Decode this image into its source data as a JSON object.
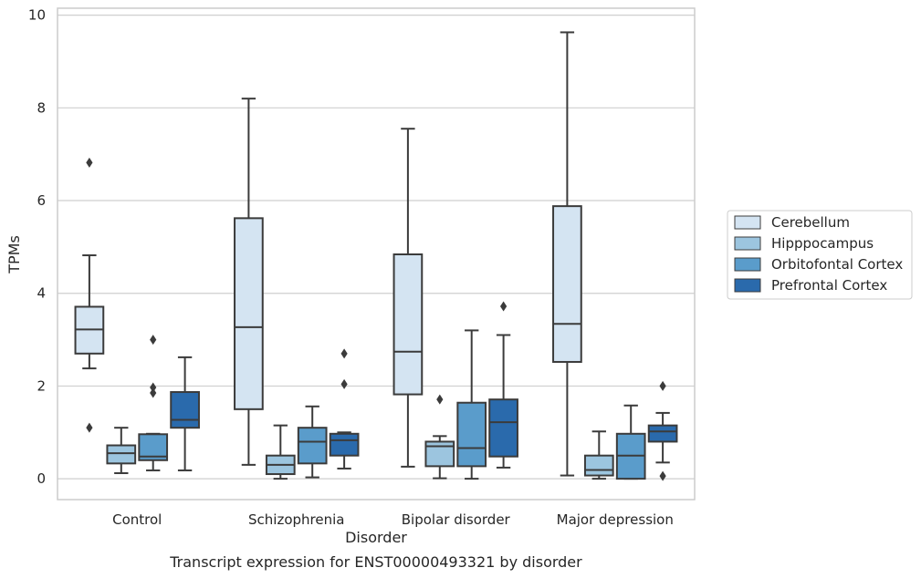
{
  "chart_data": {
    "type": "box",
    "title": "",
    "xlabel": "Disorder",
    "ylabel": "TPMs",
    "caption": "Transcript expression for ENST00000493321 by disorder",
    "ylim": [
      -0.45,
      10.15
    ],
    "yticks": [
      0,
      2,
      4,
      6,
      8,
      10
    ],
    "grid": "horizontal",
    "legend_position": "right",
    "categories": [
      "Control",
      "Schizophrenia",
      "Bipolar disorder",
      "Major depression"
    ],
    "series": [
      {
        "name": "Cerebellum",
        "color": "#d4e4f2",
        "boxes": [
          {
            "whislo": 2.38,
            "q1": 2.7,
            "med": 3.22,
            "q3": 3.71,
            "whishi": 4.82,
            "fliers": [
              6.82,
              1.1
            ]
          },
          {
            "whislo": 0.3,
            "q1": 1.5,
            "med": 3.27,
            "q3": 5.62,
            "whishi": 8.2,
            "fliers": []
          },
          {
            "whislo": 0.26,
            "q1": 1.82,
            "med": 2.74,
            "q3": 4.84,
            "whishi": 7.55,
            "fliers": []
          },
          {
            "whislo": 0.07,
            "q1": 2.52,
            "med": 3.34,
            "q3": 5.88,
            "whishi": 9.63,
            "fliers": []
          }
        ]
      },
      {
        "name": "Hipppocampus",
        "color": "#9cc5df",
        "boxes": [
          {
            "whislo": 0.12,
            "q1": 0.33,
            "med": 0.55,
            "q3": 0.72,
            "whishi": 1.1,
            "fliers": []
          },
          {
            "whislo": 0.0,
            "q1": 0.1,
            "med": 0.3,
            "q3": 0.5,
            "whishi": 1.15,
            "fliers": []
          },
          {
            "whislo": 0.01,
            "q1": 0.27,
            "med": 0.7,
            "q3": 0.8,
            "whishi": 0.92,
            "fliers": [
              1.71
            ]
          },
          {
            "whislo": 0.0,
            "q1": 0.07,
            "med": 0.19,
            "q3": 0.5,
            "whishi": 1.02,
            "fliers": []
          }
        ]
      },
      {
        "name": "Orbitofontal Cortex",
        "color": "#5a9ccb",
        "boxes": [
          {
            "whislo": 0.18,
            "q1": 0.4,
            "med": 0.48,
            "q3": 0.96,
            "whishi": 0.97,
            "fliers": [
              3.0,
              1.97,
              1.85
            ]
          },
          {
            "whislo": 0.03,
            "q1": 0.33,
            "med": 0.8,
            "q3": 1.1,
            "whishi": 1.56,
            "fliers": []
          },
          {
            "whislo": 0.0,
            "q1": 0.27,
            "med": 0.66,
            "q3": 1.64,
            "whishi": 3.2,
            "fliers": []
          },
          {
            "whislo": 0.0,
            "q1": 0.0,
            "med": 0.5,
            "q3": 0.97,
            "whishi": 1.58,
            "fliers": []
          }
        ]
      },
      {
        "name": "Prefrontal Cortex",
        "color": "#2a6aac",
        "boxes": [
          {
            "whislo": 0.18,
            "q1": 1.1,
            "med": 1.27,
            "q3": 1.87,
            "whishi": 2.62,
            "fliers": []
          },
          {
            "whislo": 0.22,
            "q1": 0.5,
            "med": 0.83,
            "q3": 0.97,
            "whishi": 1.0,
            "fliers": [
              2.7,
              2.04
            ]
          },
          {
            "whislo": 0.24,
            "q1": 0.48,
            "med": 1.22,
            "q3": 1.71,
            "whishi": 3.1,
            "fliers": [
              3.72
            ]
          },
          {
            "whislo": 0.35,
            "q1": 0.8,
            "med": 1.02,
            "q3": 1.15,
            "whishi": 1.42,
            "fliers": [
              2.0,
              0.06
            ]
          }
        ]
      }
    ]
  }
}
